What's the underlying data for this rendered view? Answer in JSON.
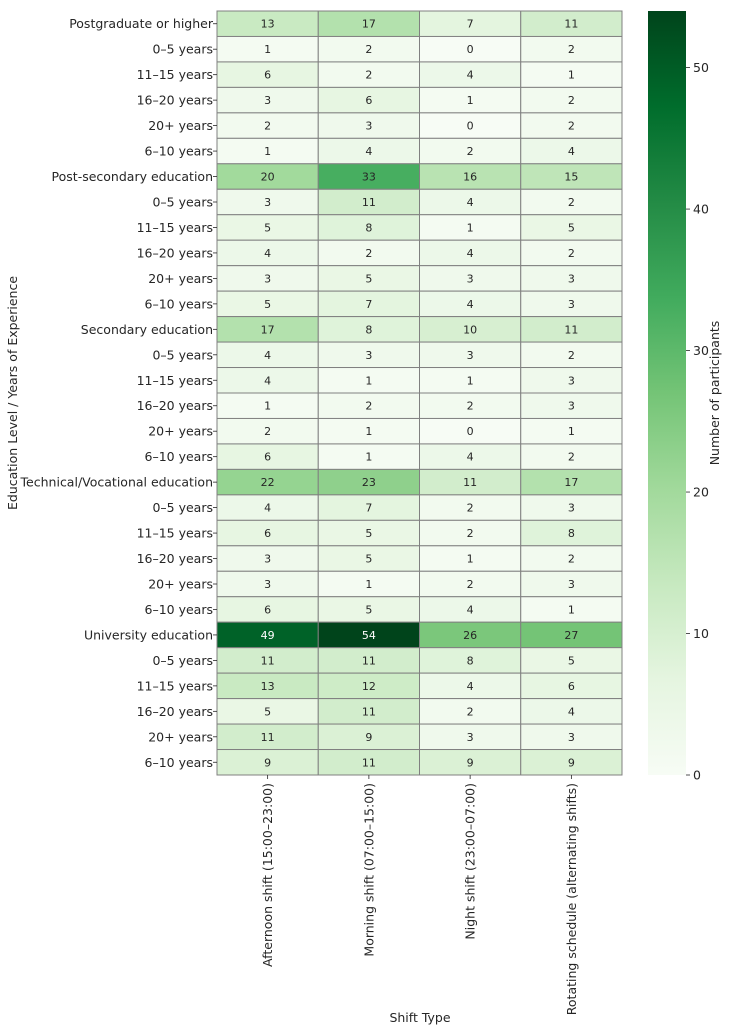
{
  "chart_data": {
    "type": "heatmap",
    "xlabel": "Shift Type",
    "ylabel": "Education Level / Years of Experience",
    "colorbar_label": "Number of participants",
    "colorbar_ticks": [
      0,
      10,
      20,
      30,
      40,
      50
    ],
    "colorscale": "Greens",
    "value_range": [
      0,
      54
    ],
    "columns": [
      "Afternoon shift (15:00–23:00)",
      "Morning shift (07:00–15:00)",
      "Night shift (23:00–07:00)",
      "Rotating schedule (alternating shifts)"
    ],
    "rows": [
      {
        "label": "Postgraduate or higher",
        "values": [
          13,
          17,
          7,
          11
        ]
      },
      {
        "label": "0–5 years",
        "values": [
          1,
          2,
          0,
          2
        ]
      },
      {
        "label": "11–15 years",
        "values": [
          6,
          2,
          4,
          1
        ]
      },
      {
        "label": "16–20 years",
        "values": [
          3,
          6,
          1,
          2
        ]
      },
      {
        "label": "20+ years",
        "values": [
          2,
          3,
          0,
          2
        ]
      },
      {
        "label": "6–10 years",
        "values": [
          1,
          4,
          2,
          4
        ]
      },
      {
        "label": "Post-secondary education",
        "values": [
          20,
          33,
          16,
          15
        ]
      },
      {
        "label": "0–5 years",
        "values": [
          3,
          11,
          4,
          2
        ]
      },
      {
        "label": "11–15 years",
        "values": [
          5,
          8,
          1,
          5
        ]
      },
      {
        "label": "16–20 years",
        "values": [
          4,
          2,
          4,
          2
        ]
      },
      {
        "label": "20+ years",
        "values": [
          3,
          5,
          3,
          3
        ]
      },
      {
        "label": "6–10 years",
        "values": [
          5,
          7,
          4,
          3
        ]
      },
      {
        "label": "Secondary education",
        "values": [
          17,
          8,
          10,
          11
        ]
      },
      {
        "label": "0–5 years",
        "values": [
          4,
          3,
          3,
          2
        ]
      },
      {
        "label": "11–15 years",
        "values": [
          4,
          1,
          1,
          3
        ]
      },
      {
        "label": "16–20 years",
        "values": [
          1,
          2,
          2,
          3
        ]
      },
      {
        "label": "20+ years",
        "values": [
          2,
          1,
          0,
          1
        ]
      },
      {
        "label": "6–10 years",
        "values": [
          6,
          1,
          4,
          2
        ]
      },
      {
        "label": "Technical/Vocational education",
        "values": [
          22,
          23,
          11,
          17
        ]
      },
      {
        "label": "0–5 years",
        "values": [
          4,
          7,
          2,
          3
        ]
      },
      {
        "label": "11–15 years",
        "values": [
          6,
          5,
          2,
          8
        ]
      },
      {
        "label": "16–20 years",
        "values": [
          3,
          5,
          1,
          2
        ]
      },
      {
        "label": "20+ years",
        "values": [
          3,
          1,
          2,
          3
        ]
      },
      {
        "label": "6–10 years",
        "values": [
          6,
          5,
          4,
          1
        ]
      },
      {
        "label": "University education",
        "values": [
          49,
          54,
          26,
          27
        ]
      },
      {
        "label": "0–5 years",
        "values": [
          11,
          11,
          8,
          5
        ]
      },
      {
        "label": "11–15 years",
        "values": [
          13,
          12,
          4,
          6
        ]
      },
      {
        "label": "16–20 years",
        "values": [
          5,
          11,
          2,
          4
        ]
      },
      {
        "label": "20+ years",
        "values": [
          11,
          9,
          3,
          3
        ]
      },
      {
        "label": "6–10 years",
        "values": [
          9,
          11,
          9,
          9
        ]
      }
    ]
  }
}
